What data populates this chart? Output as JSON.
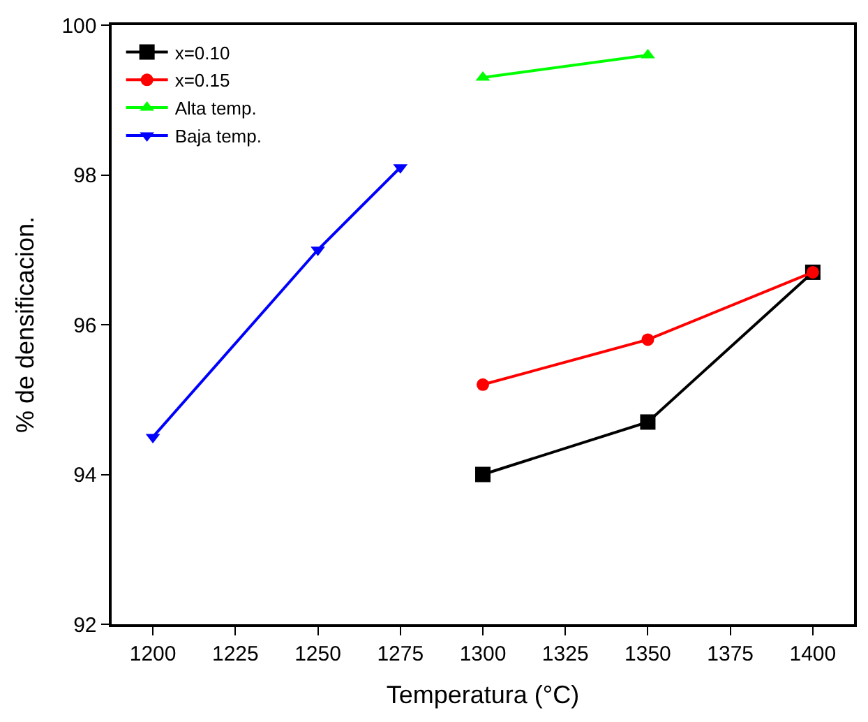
{
  "chart_data": {
    "type": "line",
    "xlabel": "Temperatura (°C)",
    "ylabel": "% de densificacion.",
    "xlim": [
      1187.5,
      1412.5
    ],
    "xticks": [
      1200,
      1225,
      1250,
      1275,
      1300,
      1325,
      1350,
      1375,
      1400
    ],
    "ylim": [
      92,
      100
    ],
    "yticks": [
      92,
      94,
      96,
      98,
      100
    ],
    "legend": "top left",
    "series": [
      {
        "name": "x=0.10",
        "color": "#000000",
        "marker": "square",
        "x": [
          1300,
          1350,
          1400
        ],
        "values": [
          94.0,
          94.7,
          96.7
        ]
      },
      {
        "name": "x=0.15",
        "color": "#ff0000",
        "marker": "circle",
        "x": [
          1300,
          1350,
          1400
        ],
        "values": [
          95.2,
          95.8,
          96.7
        ]
      },
      {
        "name": "Alta temp.",
        "color": "#00ff00",
        "marker": "triangle",
        "x": [
          1300,
          1350
        ],
        "values": [
          99.3,
          99.6
        ]
      },
      {
        "name": "Baja temp.",
        "color": "#0000ff",
        "marker": "triangle-down",
        "x": [
          1200,
          1250,
          1275
        ],
        "values": [
          94.5,
          97.0,
          98.1
        ]
      }
    ]
  }
}
